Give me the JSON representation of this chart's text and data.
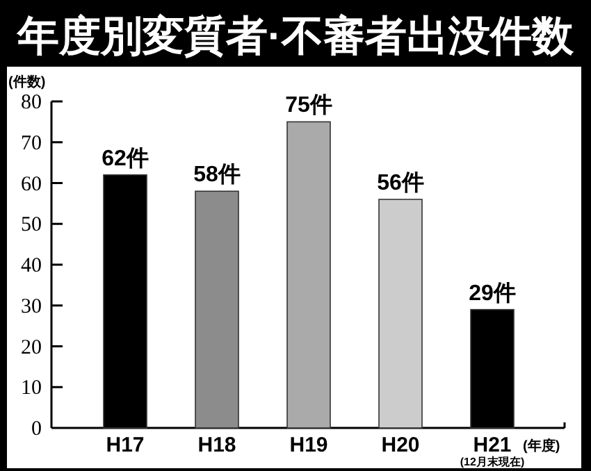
{
  "chart_data": {
    "type": "bar",
    "title": "年度別変質者·不審者出没件数",
    "ylabel": "(件数)",
    "xlabel": "(年度)",
    "categories": [
      "H17",
      "H18",
      "H19",
      "H20",
      "H21"
    ],
    "values": [
      62,
      58,
      75,
      56,
      29
    ],
    "colors": [
      "#000000",
      "#8c8c8c",
      "#aaaaaa",
      "#cccccc",
      "#000000"
    ],
    "value_labels": [
      "62件",
      "58件",
      "75件",
      "56件",
      "29件"
    ],
    "annotations": [
      "(12月末現在)"
    ],
    "ylim": [
      0,
      80
    ],
    "yticks": [
      0,
      10,
      20,
      30,
      40,
      50,
      60,
      70,
      80
    ],
    "grid": false
  }
}
